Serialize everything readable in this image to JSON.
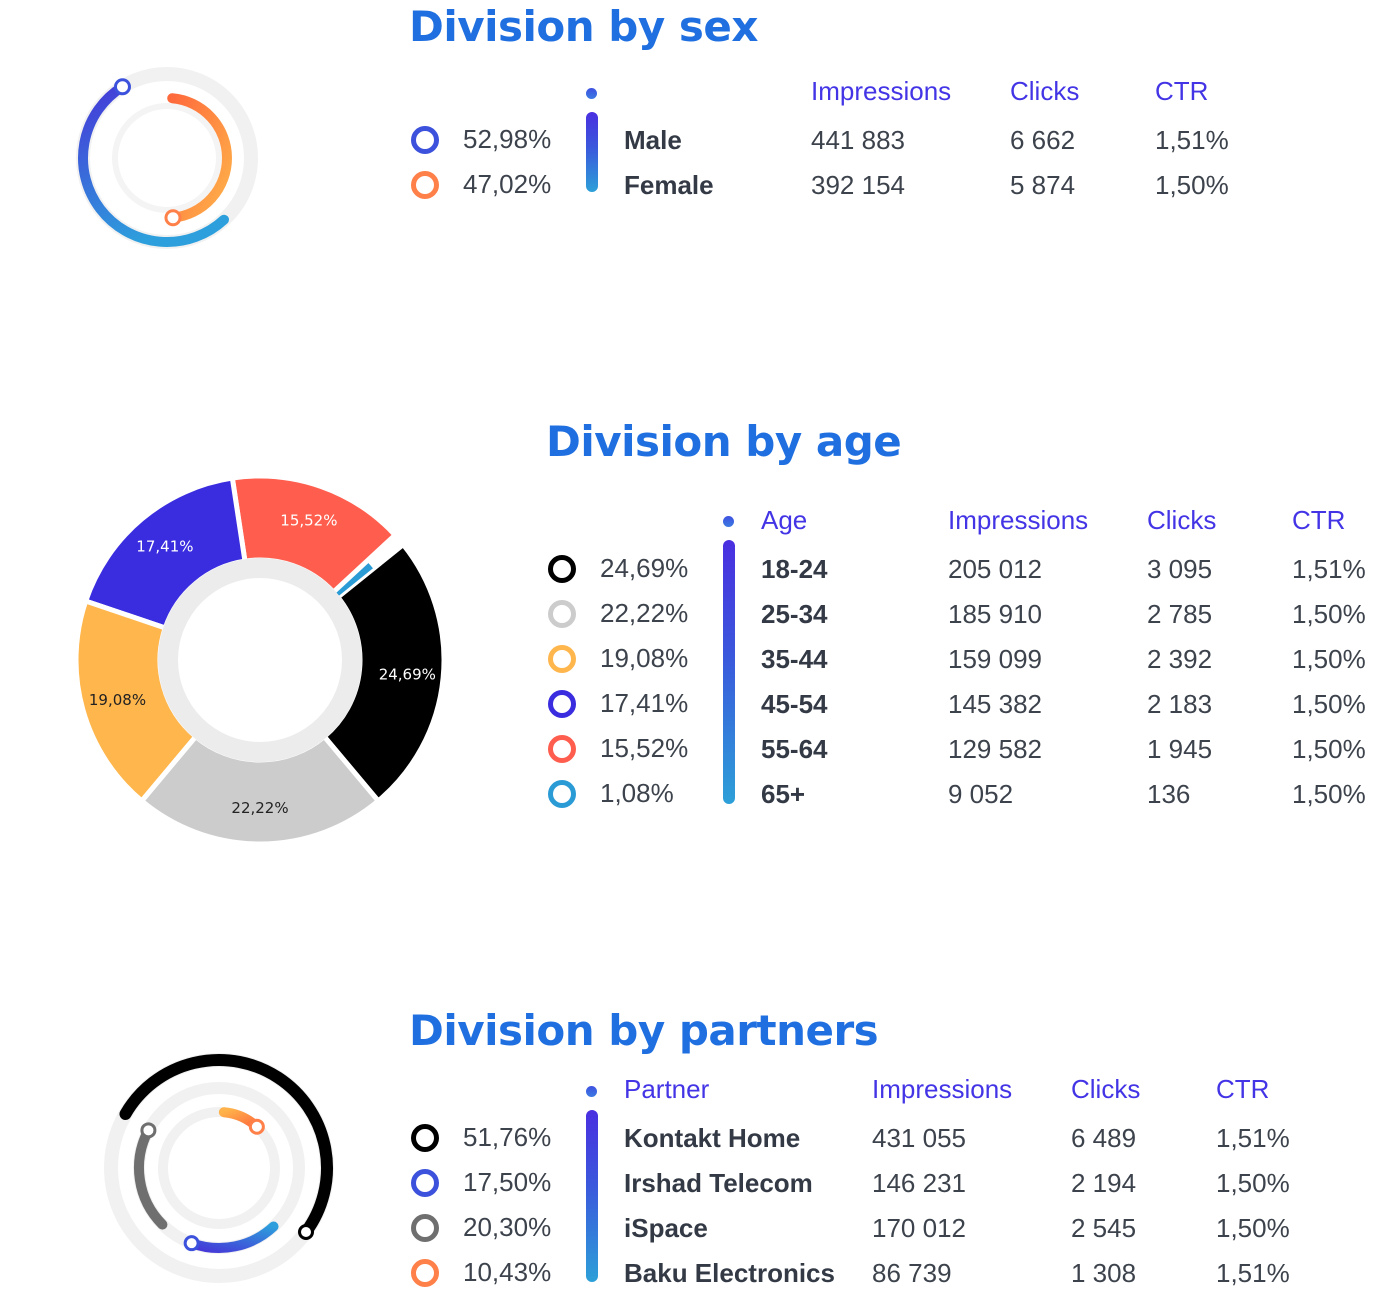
{
  "colors": {
    "title": "#1f6fe0",
    "header": "#4335e6",
    "text": "#3d434c",
    "orange": "#ff8f4a",
    "blue_gradient_start": "#4a2fe0",
    "blue_gradient_end": "#2da0d8"
  },
  "sex": {
    "title": "Division by sex",
    "headers": {
      "category": "",
      "impressions": "Impressions",
      "clicks": "Clicks",
      "ctr": "CTR"
    },
    "rows": [
      {
        "pct": "52,98%",
        "label": "Male",
        "impressions": "441 883",
        "clicks": "6 662",
        "ctr": "1,51%",
        "ring_color": "#3d52dc"
      },
      {
        "pct": "47,02%",
        "label": "Female",
        "impressions": "392 154",
        "clicks": "5 874",
        "ctr": "1,50%",
        "ring_color": "#ff8049"
      }
    ]
  },
  "age": {
    "title": "Division by age",
    "headers": {
      "category": "Age",
      "impressions": "Impressions",
      "clicks": "Clicks",
      "ctr": "CTR"
    },
    "rows": [
      {
        "pct": "24,69%",
        "label": "18-24",
        "impressions": "205 012",
        "clicks": "3 095",
        "ctr": "1,51%",
        "ring_color": "#000000"
      },
      {
        "pct": "22,22%",
        "label": "25-34",
        "impressions": "185 910",
        "clicks": "2 785",
        "ctr": "1,50%",
        "ring_color": "#cccccc"
      },
      {
        "pct": "19,08%",
        "label": "35-44",
        "impressions": "159 099",
        "clicks": "2 392",
        "ctr": "1,50%",
        "ring_color": "#ffb64d"
      },
      {
        "pct": "17,41%",
        "label": "45-54",
        "impressions": "145 382",
        "clicks": "2 183",
        "ctr": "1,50%",
        "ring_color": "#392ddf"
      },
      {
        "pct": "15,52%",
        "label": "55-64",
        "impressions": "129 582",
        "clicks": "1 945",
        "ctr": "1,50%",
        "ring_color": "#ff5e4e"
      },
      {
        "pct": "1,08%",
        "label": "65+",
        "impressions": "9 052",
        "clicks": "136",
        "ctr": "1,50%",
        "ring_color": "#2b9bd6"
      }
    ]
  },
  "partners": {
    "title": "Division by partners",
    "headers": {
      "category": "Partner",
      "impressions": "Impressions",
      "clicks": "Clicks",
      "ctr": "CTR"
    },
    "rows": [
      {
        "pct": "51,76%",
        "label": "Kontakt Home",
        "impressions": "431 055",
        "clicks": "6 489",
        "ctr": "1,51%",
        "ring_color": "#000000"
      },
      {
        "pct": "17,50%",
        "label": "Irshad Telecom",
        "impressions": "146 231",
        "clicks": "2 194",
        "ctr": "1,50%",
        "ring_color": "#3d52dc"
      },
      {
        "pct": "20,30%",
        "label": "iSpace",
        "impressions": "170 012",
        "clicks": "2 545",
        "ctr": "1,50%",
        "ring_color": "#6f6f6f"
      },
      {
        "pct": "10,43%",
        "label": "Baku Electronics",
        "impressions": "86 739",
        "clicks": "1 308",
        "ctr": "1,51%",
        "ring_color": "#ff8049"
      }
    ]
  },
  "chart_data": [
    {
      "type": "pie",
      "style": "radial-arcs",
      "title": "Division by sex",
      "categories": [
        "Male",
        "Female"
      ],
      "values": [
        52.98,
        47.02
      ],
      "colors": [
        "#3d52dc",
        "#ff8049"
      ]
    },
    {
      "type": "pie",
      "style": "donut",
      "title": "Division by age",
      "categories": [
        "18-24",
        "25-34",
        "35-44",
        "45-54",
        "55-64",
        "65+"
      ],
      "values": [
        24.69,
        22.22,
        19.08,
        17.41,
        15.52,
        1.08
      ],
      "data_labels": [
        "24,69%",
        "22,22%",
        "19,08%",
        "17,41%",
        "15,52%",
        ""
      ],
      "colors": [
        "#000000",
        "#cccccc",
        "#ffb64d",
        "#392ddf",
        "#ff5e4e",
        "#2b9bd6"
      ]
    },
    {
      "type": "pie",
      "style": "radial-arcs",
      "title": "Division by partners",
      "categories": [
        "Kontakt Home",
        "Irshad Telecom",
        "iSpace",
        "Baku Electronics"
      ],
      "values": [
        51.76,
        17.5,
        20.3,
        10.43
      ],
      "colors": [
        "#000000",
        "#3d52dc",
        "#6f6f6f",
        "#ff8049"
      ]
    }
  ]
}
